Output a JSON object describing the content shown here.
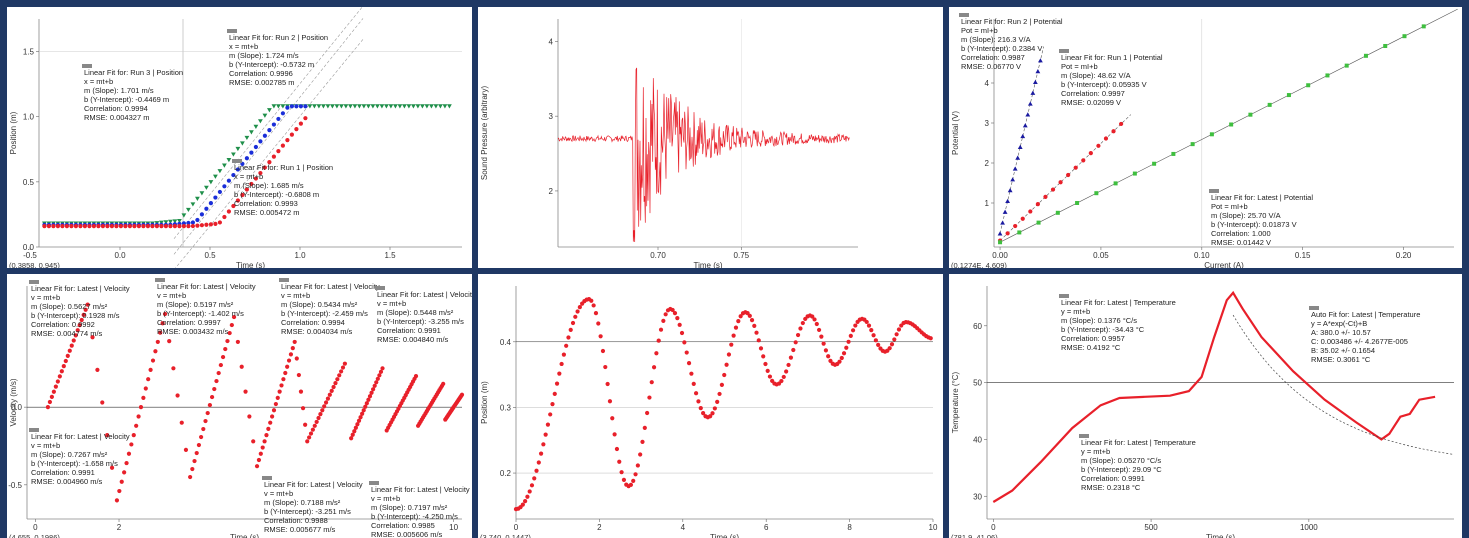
{
  "colors": {
    "border": "#1f3864",
    "red": "#e8202a",
    "blue": "#1a2ed8",
    "green": "#1f8f4a",
    "lgreen": "#3fbf3f",
    "navy": "#1a1aa0"
  },
  "panels": [
    {
      "id": "p1",
      "chart_data": {
        "type": "scatter",
        "xlabel": "Time (s)",
        "ylabel": "Position (m)",
        "xlim": [
          -0.45,
          1.9
        ],
        "ylim": [
          0,
          1.75
        ],
        "xticks": [
          {
            "v": -0.5,
            "t": "-0.5"
          },
          {
            "v": 0,
            "t": "0.0"
          },
          {
            "v": 0.5,
            "t": "0.5"
          },
          {
            "v": 1,
            "t": "1.0"
          },
          {
            "v": 1.5,
            "t": "1.5"
          }
        ],
        "yticks": [
          {
            "v": 0,
            "t": "0.0"
          },
          {
            "v": 0.5,
            "t": "0.5"
          },
          {
            "v": 1,
            "t": "1.0"
          },
          {
            "v": 1.5,
            "t": "1.5"
          }
        ],
        "coord": "(0.3858, 0.945)",
        "series": [
          {
            "color": "green",
            "marker": "tri",
            "start": 0.33,
            "slope": 1.701,
            "y0": 0.18,
            "plateau": 1.08,
            "xmax": 1.85
          },
          {
            "color": "blue",
            "marker": "dot",
            "start": 0.42,
            "slope": 1.724,
            "y0": 0.17,
            "plateau": 1.08,
            "xmax": 1.05
          },
          {
            "color": "red",
            "marker": "dot",
            "start": 0.55,
            "slope": 1.685,
            "y0": 0.16,
            "plateau": 1.08,
            "xmax": 1.05
          }
        ],
        "fitlines": [
          {
            "slope": 1.701,
            "b": -0.4469
          },
          {
            "slope": 1.724,
            "b": -0.5732
          },
          {
            "slope": 1.685,
            "b": -0.6808
          }
        ],
        "annotations": [
          {
            "lines": [
              "Linear Fit for: Run 2 | Position",
              "x = mt+b",
              "m (Slope): 1.724 m/s",
              "b (Y-Intercept): -0.5732 m",
              "Correlation: 0.9996",
              "RMSE: 0.002785 m"
            ]
          },
          {
            "lines": [
              "Linear Fit for: Run 3 | Position",
              "x = mt+b",
              "m (Slope): 1.701 m/s",
              "b (Y-Intercept): -0.4469 m",
              "Correlation: 0.9994",
              "RMSE: 0.004327 m"
            ]
          },
          {
            "lines": [
              "Linear Fit for: Run 1 | Position",
              "x = mt+b",
              "m (Slope): 1.685 m/s",
              "b (Y-Intercept): -0.6808 m",
              "Correlation: 0.9993",
              "RMSE: 0.005472 m"
            ]
          }
        ]
      }
    },
    {
      "id": "p2",
      "chart_data": {
        "type": "line",
        "xlabel": "Time (s)",
        "ylabel": "Sound Pressure (arbitrary)",
        "xlim": [
          0.64,
          0.82
        ],
        "ylim": [
          1.25,
          4.3
        ],
        "xticks": [
          {
            "v": 0.7,
            "t": "0.70"
          },
          {
            "v": 0.75,
            "t": "0.75"
          }
        ],
        "yticks": [
          {
            "v": 2,
            "t": "2"
          },
          {
            "v": 3,
            "t": "3"
          },
          {
            "v": 4,
            "t": "4"
          }
        ],
        "baseline": 2.7,
        "onset": 0.685
      }
    },
    {
      "id": "p3",
      "chart_data": {
        "type": "scatter",
        "xlabel": "Current (A)",
        "ylabel": "Potential (V)",
        "xlim": [
          -0.003,
          0.225
        ],
        "ylim": [
          -0.1,
          5.6
        ],
        "xticks": [
          {
            "v": 0,
            "t": "0.00"
          },
          {
            "v": 0.05,
            "t": "0.05"
          },
          {
            "v": 0.1,
            "t": "0.10"
          },
          {
            "v": 0.15,
            "t": "0.15"
          },
          {
            "v": 0.2,
            "t": "0.20"
          }
        ],
        "yticks": [
          {
            "v": 1,
            "t": "1"
          },
          {
            "v": 2,
            "t": "2"
          },
          {
            "v": 3,
            "t": "3"
          },
          {
            "v": 4,
            "t": "4"
          }
        ],
        "coord": "(0.1274E, 4.609)",
        "series": [
          {
            "color": "navy",
            "marker": "tri",
            "m": 216.3,
            "b": 0.2384,
            "xmin": 0.0,
            "xmax": 0.02
          },
          {
            "color": "red",
            "marker": "dot",
            "m": 48.62,
            "b": 0.05935,
            "xmin": 0.0,
            "xmax": 0.06
          },
          {
            "color": "lgreen",
            "marker": "sq",
            "m": 25.7,
            "b": 0.01873,
            "xmin": 0.0,
            "xmax": 0.21
          }
        ],
        "annotations": [
          {
            "lines": [
              "Linear Fit for: Run 2 | Potential",
              "Pot = mI+b",
              "m (Slope): 216.3 V/A",
              "b (Y-Intercept): 0.2384 V",
              "Correlation: 0.9987",
              "RMSE: 0.06770 V"
            ]
          },
          {
            "lines": [
              "Linear Fit for: Run 1 | Potential",
              "Pot = mI+b",
              "m (Slope): 48.62 V/A",
              "b (Y-Intercept): 0.05935 V",
              "Correlation: 0.9997",
              "RMSE: 0.02099 V"
            ]
          },
          {
            "lines": [
              "Linear Fit for: Latest | Potential",
              "Pot = mI+b",
              "m (Slope): 25.70 V/A",
              "b (Y-Intercept): 0.01873 V",
              "Correlation: 1.000",
              "RMSE: 0.01442 V"
            ]
          }
        ]
      }
    },
    {
      "id": "p4",
      "chart_data": {
        "type": "scatter",
        "xlabel": "Time (s)",
        "ylabel": "Velocity (m/s)",
        "xlim": [
          -0.2,
          10.2
        ],
        "ylim": [
          -0.72,
          0.78
        ],
        "xticks": [
          {
            "v": 0,
            "t": "0"
          },
          {
            "v": 2,
            "t": "2"
          },
          {
            "v": 10,
            "t": "10"
          }
        ],
        "yticks": [
          {
            "v": 0,
            "t": "0.0"
          },
          {
            "v": -0.5,
            "t": "-0.5"
          }
        ],
        "coord": "(4.655, 0.1986)",
        "cycles": [
          {
            "t0": 0.3,
            "t1": 1.25,
            "v0": 0.0,
            "v1": 0.66
          },
          {
            "t0": 1.95,
            "t1": 3.1,
            "v0": -0.6,
            "v1": 0.6
          },
          {
            "t0": 3.7,
            "t1": 4.75,
            "v0": -0.45,
            "v1": 0.58
          },
          {
            "t0": 5.3,
            "t1": 6.2,
            "v0": -0.38,
            "v1": 0.42
          },
          {
            "t0": 6.5,
            "t1": 7.4,
            "v0": -0.22,
            "v1": 0.28
          },
          {
            "t0": 7.55,
            "t1": 8.3,
            "v0": -0.2,
            "v1": 0.25
          },
          {
            "t0": 8.4,
            "t1": 9.1,
            "v0": -0.15,
            "v1": 0.2
          },
          {
            "t0": 9.15,
            "t1": 9.75,
            "v0": -0.12,
            "v1": 0.15
          },
          {
            "t0": 9.8,
            "t1": 10.2,
            "v0": -0.08,
            "v1": 0.08
          }
        ],
        "annotations": [
          {
            "lines": [
              "Linear Fit for: Latest | Velocity",
              "v = mt+b",
              "m (Slope): 0.5627 m/s²",
              "b (Y-Intercept): 0.1928 m/s",
              "Correlation: 0.9992",
              "RMSE: 0.004774 m/s"
            ]
          },
          {
            "lines": [
              "Linear Fit for: Latest | Velocity",
              "v = mt+b",
              "m (Slope): 0.5197 m/s²",
              "b (Y-Intercept): -1.402 m/s",
              "Correlation: 0.9997",
              "RMSE: 0.003432 m/s"
            ]
          },
          {
            "lines": [
              "Linear Fit for: Latest | Velocity",
              "v = mt+b",
              "m (Slope): 0.5434 m/s²",
              "b (Y-Intercept): -2.459 m/s",
              "Correlation: 0.9994",
              "RMSE: 0.004034 m/s"
            ]
          },
          {
            "lines": [
              "Linear Fit for: Latest | Velocity",
              "v = mt+b",
              "m (Slope): 0.5448 m/s²",
              "b (Y-Intercept): -3.255 m/s",
              "Correlation: 0.9991",
              "RMSE: 0.004840 m/s"
            ]
          },
          {
            "lines": [
              "Linear Fit for: Latest | Velocity",
              "v = mt+b",
              "m (Slope): 0.7267 m/s²",
              "b (Y-Intercept): -1.658 m/s",
              "Correlation: 0.9991",
              "RMSE: 0.004960 m/s"
            ]
          },
          {
            "lines": [
              "Linear Fit for: Latest | Velocity",
              "v = mt+b",
              "m (Slope): 0.7188 m/s²",
              "b (Y-Intercept): -3.251 m/s",
              "Correlation: 0.9988",
              "RMSE: 0.005677 m/s"
            ]
          },
          {
            "lines": [
              "Linear Fit for: Latest | Velocity",
              "v = mt+b",
              "m (Slope): 0.7197 m/s²",
              "b (Y-Intercept): -4.250 m/s",
              "Correlation: 0.9985",
              "RMSE: 0.005606 m/s"
            ]
          }
        ]
      }
    },
    {
      "id": "p5",
      "chart_data": {
        "type": "scatter",
        "xlabel": "Time (s)",
        "ylabel": "Position (m)",
        "xlim": [
          0,
          10
        ],
        "ylim": [
          0.13,
          0.485
        ],
        "xticks": [
          {
            "v": 0,
            "t": "0"
          },
          {
            "v": 2,
            "t": "2"
          },
          {
            "v": 4,
            "t": "4"
          },
          {
            "v": 6,
            "t": "6"
          },
          {
            "v": 8,
            "t": "8"
          },
          {
            "v": 10,
            "t": "10"
          }
        ],
        "yticks": [
          {
            "v": 0.2,
            "t": "0.2"
          },
          {
            "v": 0.3,
            "t": "0.3"
          },
          {
            "v": 0.4,
            "t": "0.4"
          }
        ],
        "coord": "(3.740, 0.1447)",
        "peaks": [
          [
            1.75,
            0.465
          ],
          [
            3.7,
            0.45
          ],
          [
            5.5,
            0.445
          ],
          [
            7.05,
            0.44
          ],
          [
            8.3,
            0.435
          ],
          [
            9.35,
            0.43
          ]
        ],
        "troughs": [
          [
            0.0,
            0.145
          ],
          [
            2.7,
            0.18
          ],
          [
            4.6,
            0.285
          ],
          [
            6.25,
            0.335
          ],
          [
            7.65,
            0.365
          ],
          [
            8.85,
            0.385
          ],
          [
            10.0,
            0.405
          ]
        ]
      }
    },
    {
      "id": "p6",
      "chart_data": {
        "type": "line",
        "xlabel": "Time (s)",
        "ylabel": "Temperature (°C)",
        "xlim": [
          -20,
          1460
        ],
        "ylim": [
          26,
          67
        ],
        "xticks": [
          {
            "v": 0,
            "t": "0"
          },
          {
            "v": 500,
            "t": "500"
          },
          {
            "v": 1000,
            "t": "1000"
          }
        ],
        "yticks": [
          {
            "v": 30,
            "t": "30"
          },
          {
            "v": 40,
            "t": "40"
          },
          {
            "v": 50,
            "t": "50"
          },
          {
            "v": 60,
            "t": "60"
          }
        ],
        "coord": "(781.9, 41.06)",
        "points": [
          [
            0,
            29
          ],
          [
            60,
            31
          ],
          [
            150,
            36
          ],
          [
            250,
            42
          ],
          [
            340,
            46
          ],
          [
            400,
            47.3
          ],
          [
            480,
            47.5
          ],
          [
            560,
            47.7
          ],
          [
            620,
            48.5
          ],
          [
            660,
            51
          ],
          [
            700,
            58
          ],
          [
            740,
            64.5
          ],
          [
            760,
            65.8
          ],
          [
            790,
            63
          ],
          [
            850,
            58
          ],
          [
            950,
            52
          ],
          [
            1050,
            47
          ],
          [
            1150,
            43
          ],
          [
            1230,
            40
          ],
          [
            1255,
            41
          ],
          [
            1290,
            44
          ],
          [
            1320,
            44.5
          ],
          [
            1350,
            47
          ],
          [
            1400,
            47.5
          ]
        ],
        "annotations": [
          {
            "lines": [
              "Linear Fit for: Latest | Temperature",
              "y = mt+b",
              "m (Slope): 0.1376 °C/s",
              "b (Y-Intercept): -34.43 °C",
              "Correlation: 0.9957",
              "RMSE: 0.4192 °C"
            ]
          },
          {
            "lines": [
              "Auto Fit for: Latest | Temperature",
              "y = A*exp(-Ct)+B",
              "A: 380.0 +/- 10.57",
              "C: 0.003486 +/- 4.2677E-005",
              "B: 35.02 +/- 0.1654",
              "RMSE: 0.3061 °C"
            ]
          },
          {
            "lines": [
              "Linear Fit for: Latest | Temperature",
              "y = mt+b",
              "m (Slope): 0.05270 °C/s",
              "b (Y-Intercept): 29.09 °C",
              "Correlation: 0.9991",
              "RMSE: 0.2318 °C"
            ]
          }
        ]
      }
    }
  ]
}
